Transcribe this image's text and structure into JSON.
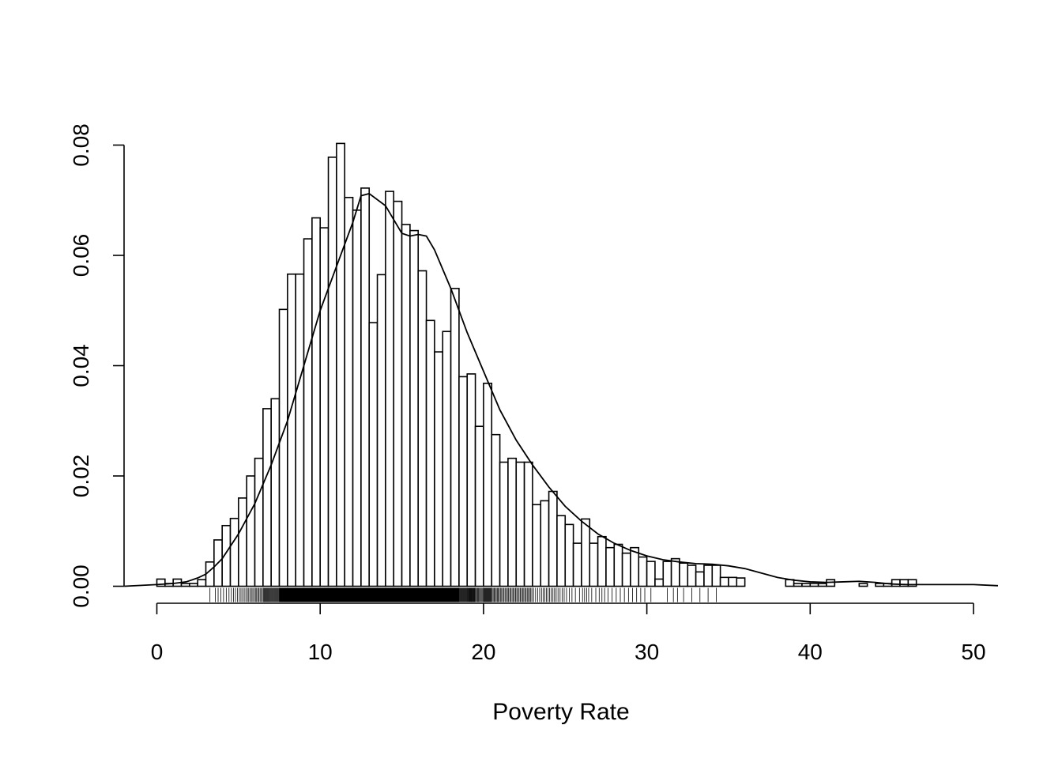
{
  "chart_data": {
    "type": "bar",
    "subtype": "histogram-with-density-and-rug",
    "title": "",
    "xlabel": "Poverty Rate",
    "ylabel": "",
    "xlim": [
      -2,
      51.5
    ],
    "ylim": [
      0,
      0.08
    ],
    "x_ticks": [
      0,
      10,
      20,
      30,
      40,
      50
    ],
    "y_ticks": [
      0.0,
      0.02,
      0.04,
      0.06,
      0.08
    ],
    "x_tick_labels": [
      "0",
      "10",
      "20",
      "30",
      "40",
      "50"
    ],
    "y_tick_labels": [
      "0.00",
      "0.02",
      "0.04",
      "0.06",
      "0.08"
    ],
    "bin_width": 0.5,
    "bins_start": 0,
    "densities": [
      0.0013,
      0.0005,
      0.0013,
      0.0005,
      0.0005,
      0.0012,
      0.0044,
      0.0084,
      0.011,
      0.0123,
      0.016,
      0.02,
      0.0232,
      0.0322,
      0.034,
      0.0502,
      0.0566,
      0.0566,
      0.063,
      0.0668,
      0.065,
      0.0778,
      0.0803,
      0.0705,
      0.0682,
      0.0722,
      0.0478,
      0.0565,
      0.0716,
      0.0698,
      0.0656,
      0.0645,
      0.0572,
      0.0482,
      0.0425,
      0.0462,
      0.054,
      0.038,
      0.0385,
      0.029,
      0.0368,
      0.0275,
      0.0225,
      0.0232,
      0.0225,
      0.0225,
      0.0148,
      0.0155,
      0.0172,
      0.0128,
      0.0112,
      0.0078,
      0.0122,
      0.0078,
      0.009,
      0.007,
      0.0076,
      0.006,
      0.007,
      0.0053,
      0.0045,
      0.0013,
      0.0045,
      0.005,
      0.0042,
      0.0038,
      0.0026,
      0.0038,
      0.0038,
      0.0016,
      0.0016,
      0.0015,
      0,
      0,
      0,
      0,
      0,
      0.0012,
      0.0005,
      0.0005,
      0.0005,
      0.0005,
      0.0012,
      0,
      0,
      0,
      0.0005,
      0,
      0.0005,
      0.0005,
      0.0012,
      0.0012,
      0.0012,
      0,
      0,
      0,
      0,
      0,
      0,
      0,
      0,
      0,
      0,
      0,
      0,
      0,
      0,
      0,
      0,
      0,
      0,
      0,
      0,
      0,
      0,
      0,
      0,
      0,
      0,
      0,
      0,
      0,
      0,
      0.0012,
      0,
      0,
      0,
      0,
      0,
      0,
      0.0005,
      0,
      0,
      0,
      0.0005,
      0.0005
    ],
    "density_curve": {
      "x": [
        -2,
        0,
        1,
        1.8,
        2.5,
        3,
        3.5,
        4,
        5,
        6,
        7,
        8,
        9,
        10,
        11,
        12,
        12.5,
        13,
        14,
        14.5,
        15,
        15.5,
        16,
        16.5,
        17,
        18,
        19,
        20,
        21,
        22,
        23,
        24,
        25,
        26,
        27,
        28,
        29,
        30,
        31,
        32,
        33,
        34,
        35,
        36,
        37,
        38,
        39,
        40,
        41,
        42,
        43,
        44,
        45,
        46,
        47,
        48,
        49,
        50,
        51.5
      ],
      "y": [
        0,
        0.0003,
        0.0005,
        0.0008,
        0.0015,
        0.0022,
        0.0035,
        0.005,
        0.0095,
        0.015,
        0.022,
        0.03,
        0.04,
        0.05,
        0.058,
        0.066,
        0.0708,
        0.0712,
        0.069,
        0.0665,
        0.064,
        0.0635,
        0.0638,
        0.0635,
        0.061,
        0.054,
        0.046,
        0.039,
        0.032,
        0.0265,
        0.022,
        0.018,
        0.0145,
        0.0118,
        0.0095,
        0.0078,
        0.0065,
        0.0055,
        0.0048,
        0.0044,
        0.0041,
        0.004,
        0.0037,
        0.0032,
        0.0024,
        0.0016,
        0.0011,
        0.0008,
        0.0007,
        0.0008,
        0.0009,
        0.0007,
        0.0004,
        0.0003,
        0.0003,
        0.0003,
        0.0003,
        0.0003,
        0.0001
      ]
    }
  }
}
